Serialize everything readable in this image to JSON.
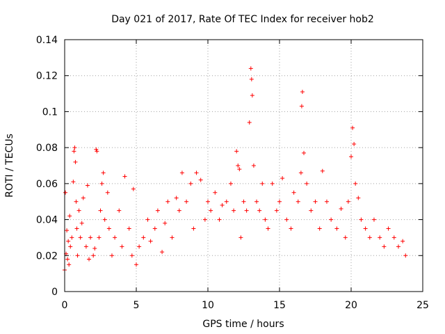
{
  "chart_data": {
    "type": "scatter",
    "title": "Day 021 of 2017, Rate Of TEC Index for receiver hob2",
    "xlabel": "GPS time / hours",
    "ylabel": "ROTI / TECUs",
    "xlim": [
      0,
      25
    ],
    "ylim": [
      0,
      0.14
    ],
    "x_ticks": [
      0,
      5,
      10,
      15,
      20,
      25
    ],
    "y_ticks": [
      0,
      0.02,
      0.04,
      0.06,
      0.08,
      0.1,
      0.12,
      0.14
    ],
    "x_tick_labels": [
      "0",
      "5",
      "10",
      "15",
      "20",
      "25"
    ],
    "y_tick_labels": [
      "0",
      "0.02",
      "0.04",
      "0.06",
      "0.08",
      "0.1",
      "0.12",
      "0.14"
    ],
    "grid": true,
    "marker": "plus",
    "color": "#ff0000",
    "series": [
      {
        "x": [
          0.0,
          0.05,
          0.1,
          0.15,
          0.2,
          0.25,
          0.3,
          0.35,
          0.4,
          0.5,
          0.6,
          0.65,
          0.7,
          0.75,
          0.8,
          0.85,
          0.9,
          1.0,
          1.1,
          1.2,
          1.3,
          1.5,
          1.6,
          1.7,
          1.8,
          2.0,
          2.1,
          2.2,
          2.25,
          2.4,
          2.5,
          2.6,
          2.7,
          2.8,
          3.0,
          3.1,
          3.3,
          3.5,
          3.8,
          4.0,
          4.2,
          4.5,
          4.7,
          4.8,
          5.0,
          5.2,
          5.5,
          5.8,
          6.0,
          6.3,
          6.5,
          6.8,
          7.0,
          7.2,
          7.5,
          7.8,
          8.0,
          8.2,
          8.5,
          8.8,
          9.0,
          9.2,
          9.5,
          9.8,
          10.0,
          10.2,
          10.5,
          10.8,
          11.0,
          11.3,
          11.6,
          11.8,
          12.0,
          12.1,
          12.2,
          12.3,
          12.5,
          12.7,
          12.9,
          13.0,
          13.05,
          13.1,
          13.2,
          13.4,
          13.6,
          13.8,
          14.0,
          14.2,
          14.5,
          14.8,
          15.0,
          15.2,
          15.5,
          15.8,
          16.0,
          16.3,
          16.5,
          16.55,
          16.6,
          16.7,
          16.9,
          17.2,
          17.5,
          17.8,
          18.0,
          18.3,
          18.6,
          19.0,
          19.3,
          19.6,
          19.8,
          20.0,
          20.1,
          20.2,
          20.3,
          20.5,
          20.7,
          21.0,
          21.3,
          21.6,
          22.0,
          22.3,
          22.6,
          23.0,
          23.3,
          23.6,
          23.8
        ],
        "y": [
          0.012,
          0.055,
          0.021,
          0.034,
          0.018,
          0.028,
          0.015,
          0.042,
          0.025,
          0.03,
          0.061,
          0.078,
          0.08,
          0.072,
          0.05,
          0.035,
          0.02,
          0.045,
          0.03,
          0.038,
          0.052,
          0.025,
          0.059,
          0.018,
          0.03,
          0.02,
          0.024,
          0.079,
          0.078,
          0.03,
          0.045,
          0.06,
          0.066,
          0.04,
          0.055,
          0.035,
          0.02,
          0.03,
          0.045,
          0.025,
          0.064,
          0.035,
          0.02,
          0.057,
          0.015,
          0.025,
          0.03,
          0.04,
          0.028,
          0.035,
          0.045,
          0.022,
          0.038,
          0.05,
          0.03,
          0.052,
          0.045,
          0.066,
          0.05,
          0.06,
          0.035,
          0.066,
          0.062,
          0.04,
          0.05,
          0.045,
          0.055,
          0.04,
          0.048,
          0.05,
          0.06,
          0.045,
          0.078,
          0.07,
          0.068,
          0.03,
          0.05,
          0.045,
          0.094,
          0.124,
          0.118,
          0.109,
          0.07,
          0.05,
          0.045,
          0.06,
          0.04,
          0.035,
          0.06,
          0.045,
          0.05,
          0.063,
          0.04,
          0.035,
          0.055,
          0.05,
          0.066,
          0.103,
          0.111,
          0.077,
          0.06,
          0.045,
          0.05,
          0.035,
          0.067,
          0.05,
          0.04,
          0.035,
          0.046,
          0.03,
          0.05,
          0.075,
          0.091,
          0.082,
          0.06,
          0.052,
          0.04,
          0.035,
          0.03,
          0.04,
          0.03,
          0.025,
          0.035,
          0.03,
          0.025,
          0.028,
          0.02
        ]
      }
    ]
  }
}
